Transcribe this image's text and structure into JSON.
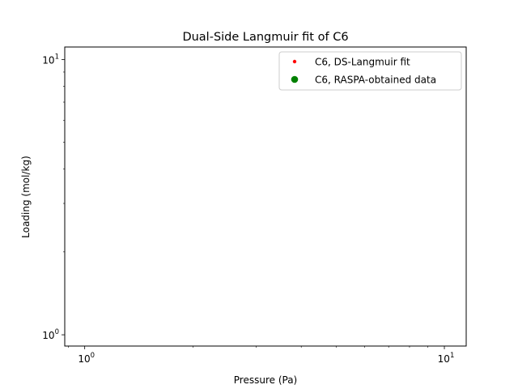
{
  "chart_data": {
    "type": "scatter",
    "title": "Dual-Side Langmuir fit of C6",
    "xlabel": "Pressure (Pa)",
    "ylabel": "Loading (mol/kg)",
    "xscale": "log",
    "yscale": "log",
    "xlim": [
      0.88,
      11.5
    ],
    "ylim": [
      0.91,
      11.1
    ],
    "x_major_ticks": [
      {
        "value": 1,
        "base": "10",
        "exp": "0"
      },
      {
        "value": 10,
        "base": "10",
        "exp": "1"
      }
    ],
    "y_major_ticks": [
      {
        "value": 1,
        "base": "10",
        "exp": "0"
      },
      {
        "value": 10,
        "base": "10",
        "exp": "1"
      }
    ],
    "grid": false,
    "legend_position": "top-right",
    "series": [
      {
        "name": "C6, DS-Langmuir fit",
        "color": "#ff0000",
        "marker": "small-dot",
        "x": [],
        "y": []
      },
      {
        "name": "C6, RASPA-obtained data",
        "color": "#008000",
        "marker": "circle",
        "x": [],
        "y": []
      }
    ]
  }
}
